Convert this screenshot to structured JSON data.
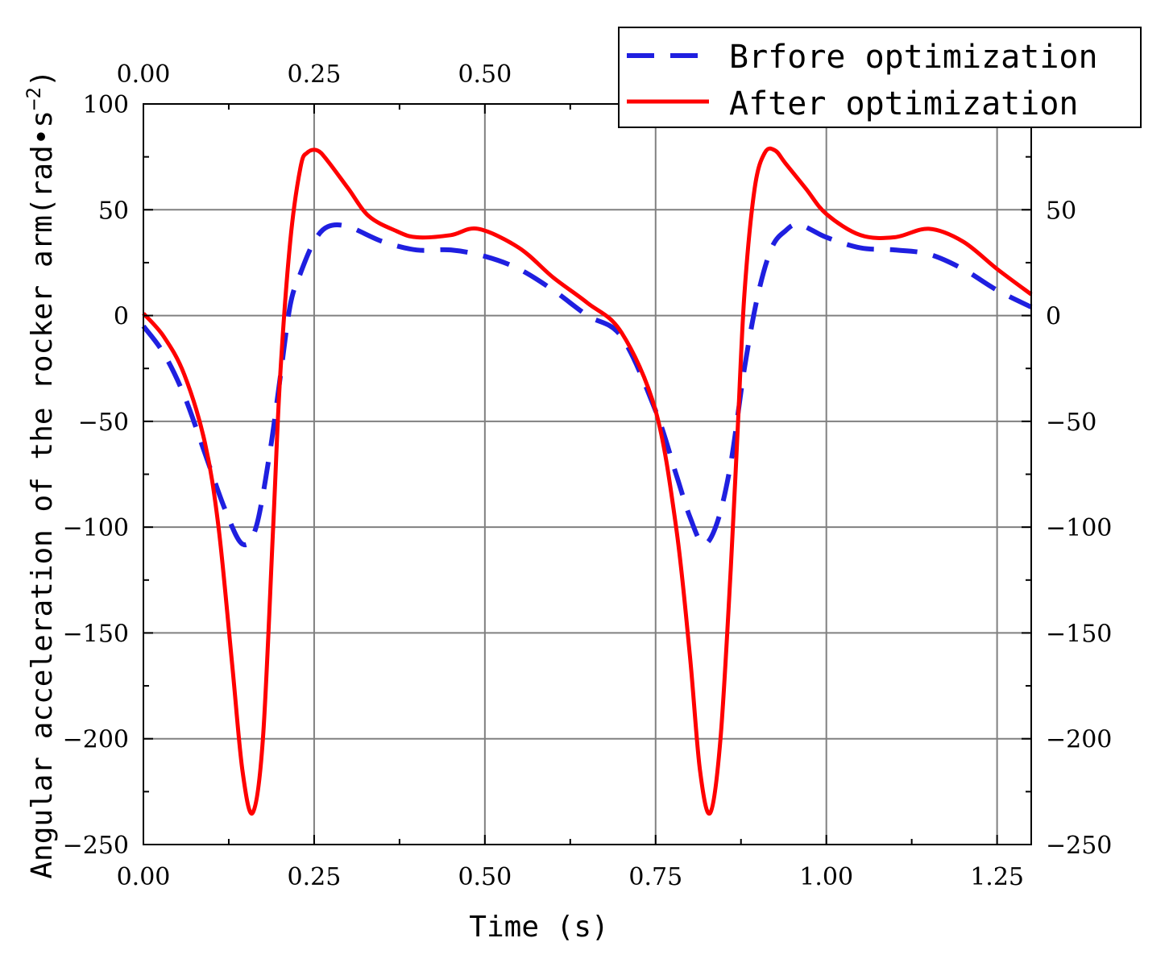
{
  "chart_data": {
    "type": "line",
    "xlabel": "Time (s)",
    "ylabel": "Angular acceleration of the rocker arm(rad•s",
    "ylabel_sup": "−2",
    "ylabel_close": ")",
    "xlim": [
      0,
      1.3
    ],
    "ylim": [
      -250,
      100
    ],
    "x_ticks": [
      0,
      0.25,
      0.5,
      0.75,
      1.0,
      1.25
    ],
    "x_tick_labels": [
      "0.00",
      "0.25",
      "0.50",
      "0.75",
      "1.00",
      "1.25"
    ],
    "x_top_tick_labels": [
      "0.00",
      "0.25",
      "0.50"
    ],
    "y_ticks": [
      -250,
      -200,
      -150,
      -100,
      -50,
      0,
      50,
      100
    ],
    "y_tick_labels": [
      "−250",
      "−200",
      "−150",
      "−100",
      "−50",
      "0",
      "50",
      "100"
    ],
    "y_right_tick_labels": [
      "−250",
      "−200",
      "−150",
      "−100",
      "−50",
      "0",
      "50"
    ],
    "grid": true,
    "legend_position": "top-right",
    "series": [
      {
        "name": "Brfore optimization",
        "color": "#1f1fe0",
        "style": "dashed",
        "x": [
          0,
          0.03,
          0.06,
          0.09,
          0.12,
          0.145,
          0.165,
          0.185,
          0.2,
          0.215,
          0.23,
          0.25,
          0.27,
          0.3,
          0.35,
          0.4,
          0.45,
          0.5,
          0.55,
          0.6,
          0.65,
          0.7,
          0.75,
          0.78,
          0.8,
          0.82,
          0.84,
          0.86,
          0.88,
          0.9,
          0.92,
          0.94,
          0.96,
          1.0,
          1.05,
          1.1,
          1.15,
          1.2,
          1.25,
          1.3
        ],
        "y": [
          -5,
          -18,
          -38,
          -65,
          -92,
          -108,
          -100,
          -65,
          -30,
          5,
          20,
          35,
          42,
          42,
          35,
          31,
          31,
          28,
          22,
          12,
          0,
          -10,
          -45,
          -75,
          -95,
          -108,
          -98,
          -70,
          -25,
          10,
          32,
          40,
          43,
          37,
          32,
          31,
          29,
          22,
          12,
          4
        ]
      },
      {
        "name": "After optimization",
        "color": "#ff0000",
        "style": "solid",
        "x": [
          0,
          0.03,
          0.06,
          0.09,
          0.11,
          0.13,
          0.145,
          0.16,
          0.175,
          0.19,
          0.2,
          0.215,
          0.23,
          0.24,
          0.255,
          0.27,
          0.3,
          0.33,
          0.37,
          0.4,
          0.45,
          0.49,
          0.55,
          0.6,
          0.65,
          0.7,
          0.75,
          0.78,
          0.8,
          0.815,
          0.83,
          0.845,
          0.86,
          0.87,
          0.88,
          0.895,
          0.91,
          0.925,
          0.94,
          0.97,
          1.0,
          1.05,
          1.1,
          1.15,
          1.2,
          1.25,
          1.3
        ],
        "y": [
          1,
          -10,
          -28,
          -60,
          -100,
          -165,
          -215,
          -235,
          -200,
          -100,
          -30,
          35,
          70,
          77,
          78,
          73,
          60,
          47,
          40,
          37,
          38,
          41,
          32,
          18,
          6,
          -8,
          -45,
          -100,
          -160,
          -215,
          -235,
          -200,
          -120,
          -55,
          10,
          60,
          77,
          78,
          72,
          60,
          48,
          38,
          37,
          41,
          35,
          22,
          10
        ]
      }
    ]
  }
}
